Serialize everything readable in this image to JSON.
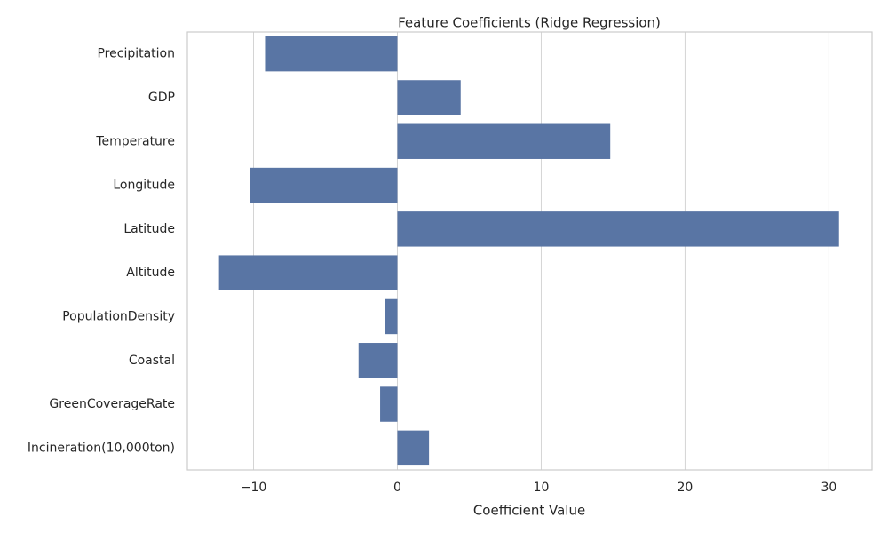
{
  "chart_data": {
    "type": "bar",
    "orientation": "horizontal",
    "title": "Feature Coefficients (Ridge Regression)",
    "x_label": "Coefficient Value",
    "categories": [
      "Precipitation",
      "GDP",
      "Temperature",
      "Longitude",
      "Latitude",
      "Altitude",
      "PopulationDensity",
      "Coastal",
      "GreenCoverageRate",
      "Incineration(10,000ton)"
    ],
    "values": [
      -9.2,
      4.4,
      14.8,
      -10.25,
      30.7,
      -12.4,
      -0.86,
      -2.7,
      -1.2,
      2.2
    ],
    "color": "#5975a4",
    "xlim": [
      -14.6,
      33.0
    ],
    "xticks": [
      {
        "value": -10,
        "label": "−10"
      },
      0,
      10,
      20,
      30
    ],
    "grid": true
  }
}
